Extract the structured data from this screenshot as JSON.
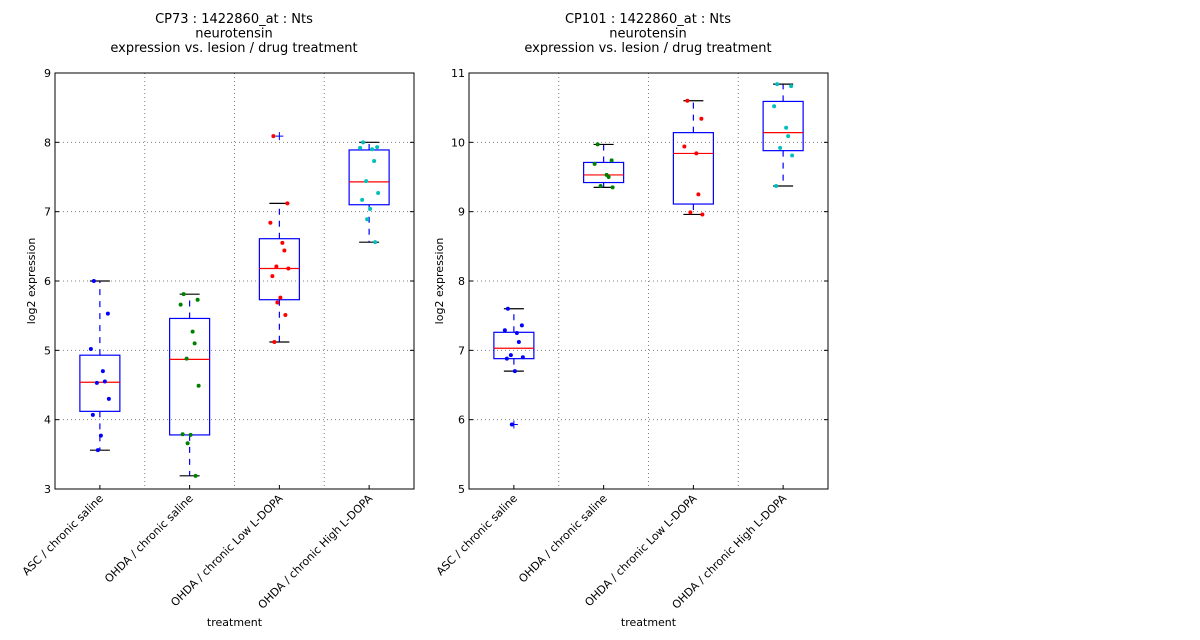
{
  "chart_data": [
    {
      "type": "box",
      "title_lines": [
        "CP73 : 1422860_at : Nts",
        "neurotensin",
        "expression vs. lesion / drug treatment"
      ],
      "xlabel": "treatment",
      "ylabel": "log2 expression",
      "ylim": [
        3,
        9
      ],
      "yticks": [
        "3",
        "4",
        "5",
        "6",
        "7",
        "8",
        "9"
      ],
      "grid": true,
      "categories": [
        "ASC / chronic saline",
        "OHDA / chronic saline",
        "OHDA / chronic Low L-DOPA",
        "OHDA / chronic High L-DOPA"
      ],
      "groups": [
        {
          "color": "#0000ff",
          "whisker_low": 3.56,
          "q1": 4.12,
          "median": 4.54,
          "q3": 4.93,
          "whisker_high": 6.0,
          "outliers": [],
          "points": [
            6.0,
            5.53,
            5.02,
            4.7,
            4.55,
            4.53,
            4.3,
            4.07,
            3.77,
            3.56
          ]
        },
        {
          "color": "#008000",
          "whisker_low": 3.19,
          "q1": 3.78,
          "median": 4.87,
          "q3": 5.46,
          "whisker_high": 5.81,
          "outliers": [],
          "points": [
            5.81,
            5.73,
            5.66,
            5.27,
            5.1,
            4.88,
            4.49,
            3.79,
            3.78,
            3.66,
            3.19
          ]
        },
        {
          "color": "#ff0000",
          "whisker_low": 5.12,
          "q1": 5.73,
          "median": 6.18,
          "q3": 6.61,
          "whisker_high": 7.12,
          "outliers": [
            8.09
          ],
          "points": [
            8.09,
            7.12,
            6.84,
            6.55,
            6.44,
            6.21,
            6.18,
            6.07,
            5.76,
            5.69,
            5.51,
            5.12
          ]
        },
        {
          "color": "#00bfbf",
          "whisker_low": 6.56,
          "q1": 7.1,
          "median": 7.43,
          "q3": 7.89,
          "whisker_high": 8.0,
          "outliers": [],
          "points": [
            8.0,
            7.93,
            7.92,
            7.9,
            7.73,
            7.44,
            7.27,
            7.17,
            7.04,
            6.89,
            6.56
          ]
        }
      ]
    },
    {
      "type": "box",
      "title_lines": [
        "CP101 : 1422860_at : Nts",
        "neurotensin",
        "expression vs. lesion / drug treatment"
      ],
      "xlabel": "treatment",
      "ylabel": "log2 expression",
      "ylim": [
        5,
        11
      ],
      "yticks": [
        "5",
        "6",
        "7",
        "8",
        "9",
        "10",
        "11"
      ],
      "grid": true,
      "categories": [
        "ASC / chronic saline",
        "OHDA / chronic saline",
        "OHDA / chronic Low L-DOPA",
        "OHDA / chronic High L-DOPA"
      ],
      "groups": [
        {
          "color": "#0000ff",
          "whisker_low": 6.7,
          "q1": 6.88,
          "median": 7.03,
          "q3": 7.26,
          "whisker_high": 7.6,
          "outliers": [
            5.93
          ],
          "points": [
            7.6,
            7.36,
            7.29,
            7.25,
            7.12,
            6.93,
            6.9,
            6.88,
            6.7,
            5.93
          ]
        },
        {
          "color": "#008000",
          "whisker_low": 9.35,
          "q1": 9.42,
          "median": 9.53,
          "q3": 9.71,
          "whisker_high": 9.97,
          "outliers": [],
          "points": [
            9.97,
            9.74,
            9.69,
            9.53,
            9.5,
            9.37,
            9.35
          ]
        },
        {
          "color": "#ff0000",
          "whisker_low": 8.96,
          "q1": 9.11,
          "median": 9.84,
          "q3": 10.14,
          "whisker_high": 10.6,
          "outliers": [],
          "points": [
            10.6,
            10.34,
            9.94,
            9.84,
            9.25,
            8.99,
            8.96
          ]
        },
        {
          "color": "#00bfbf",
          "whisker_low": 9.37,
          "q1": 9.88,
          "median": 10.14,
          "q3": 10.59,
          "whisker_high": 10.84,
          "outliers": [],
          "points": [
            10.84,
            10.81,
            10.52,
            10.21,
            10.09,
            9.92,
            9.81,
            9.37
          ]
        }
      ]
    }
  ],
  "style": {
    "box_color": "#0000ff",
    "median_color": "#ff0000",
    "cap_color": "#000000",
    "grid_color": "#808080"
  }
}
